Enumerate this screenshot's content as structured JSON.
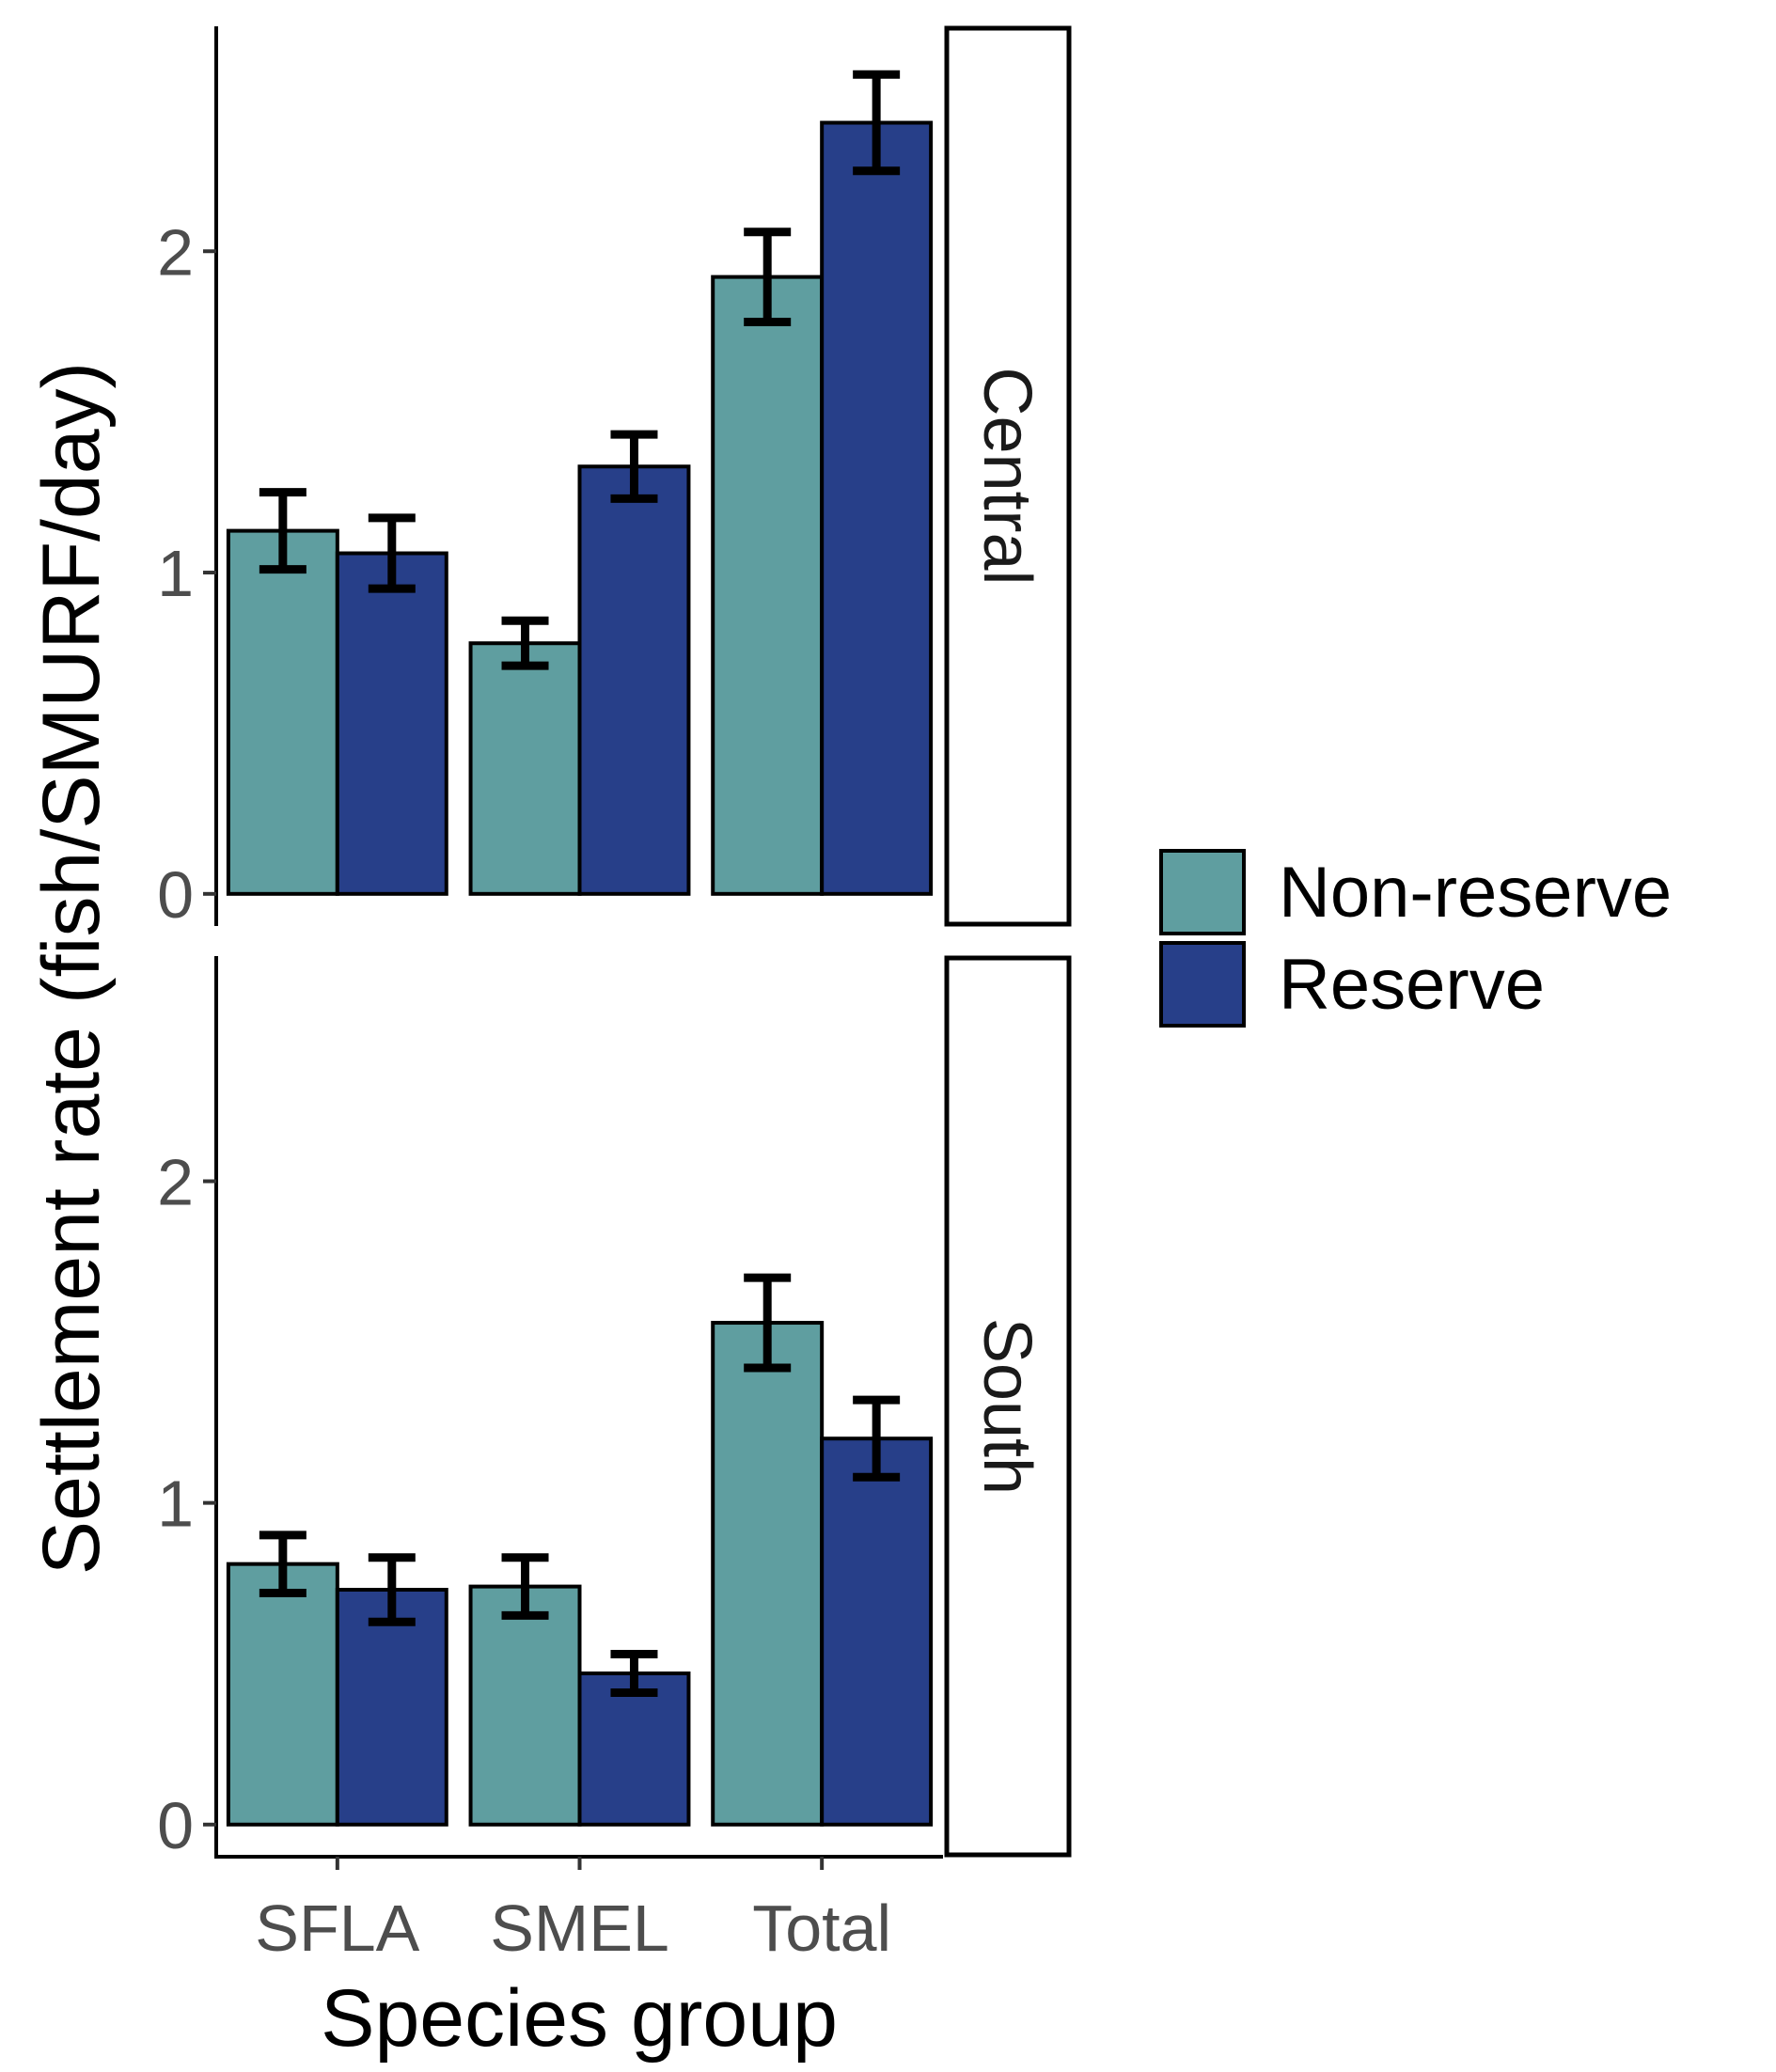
{
  "chart_data": {
    "type": "bar",
    "xlabel": "Species group",
    "ylabel": "Settlement rate (fish/SMURF/day)",
    "categories": [
      "SFLA",
      "SMEL",
      "Total"
    ],
    "yticks": [
      0,
      1,
      2
    ],
    "ylim": [
      -0.1,
      2.7
    ],
    "grid": false,
    "legend_position": "right",
    "colors": {
      "Non-reserve": "#5f9ea0",
      "Reserve": "#273f89"
    },
    "facets": [
      {
        "label": "Central",
        "series": [
          {
            "name": "Non-reserve",
            "values": [
              1.13,
              0.78,
              1.92
            ],
            "errors": [
              0.12,
              0.07,
              0.14
            ]
          },
          {
            "name": "Reserve",
            "values": [
              1.06,
              1.33,
              2.4
            ],
            "errors": [
              0.11,
              0.1,
              0.15
            ]
          }
        ]
      },
      {
        "label": "South",
        "series": [
          {
            "name": "Non-reserve",
            "values": [
              0.81,
              0.74,
              1.56
            ],
            "errors": [
              0.09,
              0.09,
              0.14
            ]
          },
          {
            "name": "Reserve",
            "values": [
              0.73,
              0.47,
              1.2
            ],
            "errors": [
              0.1,
              0.06,
              0.12
            ]
          }
        ]
      }
    ]
  }
}
